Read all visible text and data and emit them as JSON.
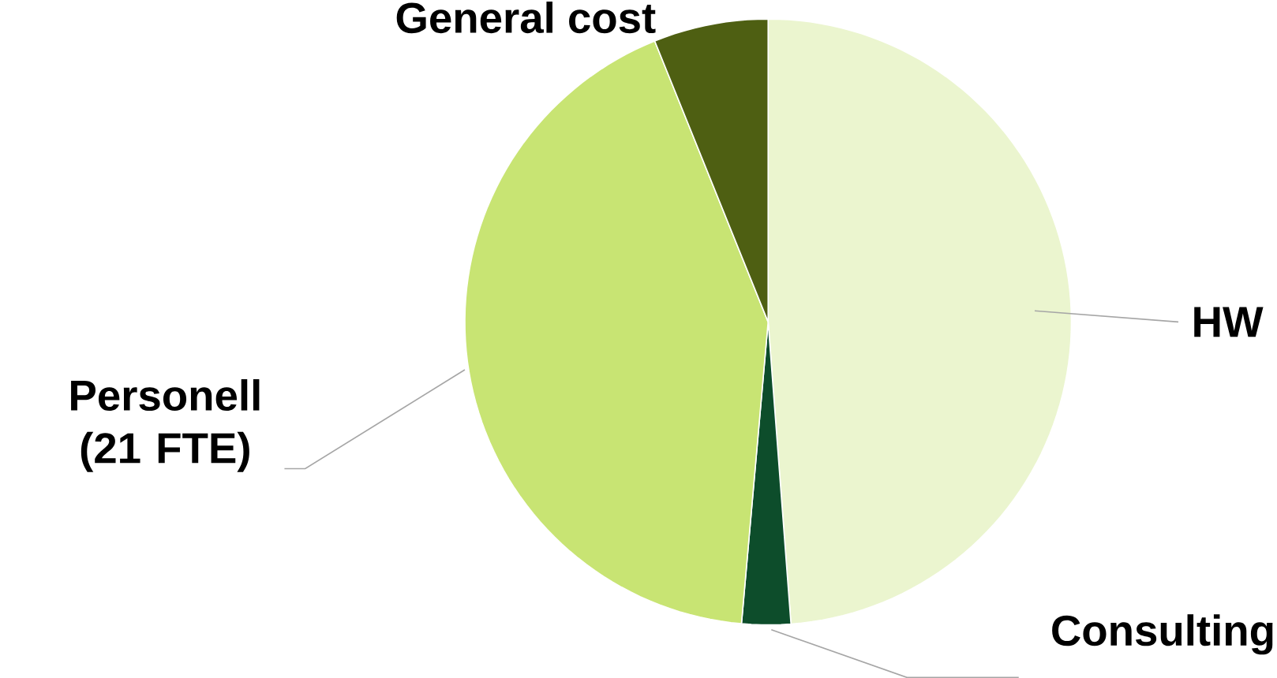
{
  "chart_data": {
    "type": "pie",
    "categories": [
      "HW",
      "Consulting",
      "Personell  (21 FTE)",
      "General cost"
    ],
    "values": [
      48.8,
      2.6,
      42.5,
      6.1
    ],
    "colors": [
      "#ebf5cf",
      "#0d4d2b",
      "#c8e473",
      "#4e5f12"
    ]
  }
}
